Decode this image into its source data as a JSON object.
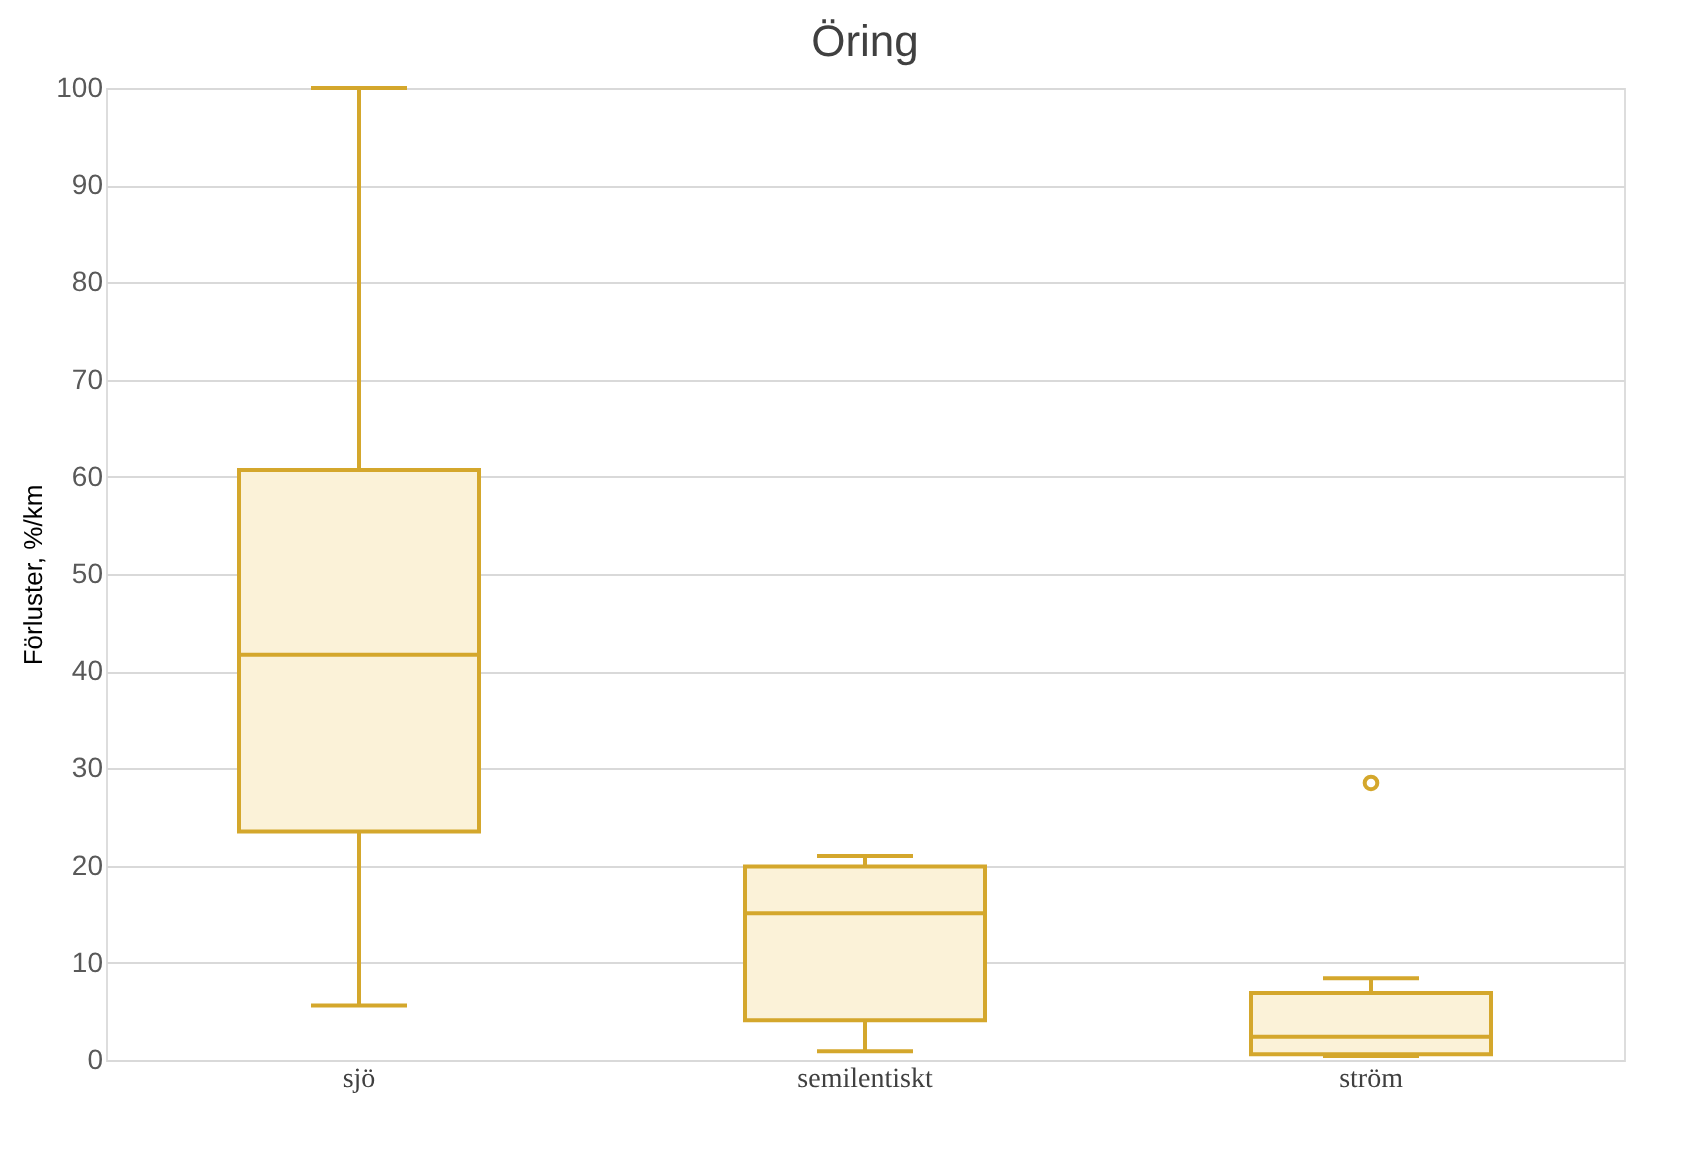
{
  "chart_data": {
    "type": "box",
    "title": "Öring",
    "ylabel": "Förluster, %/km",
    "categories": [
      "sjö",
      "semilentiskt",
      "ström"
    ],
    "color": "#d4a72c",
    "boxes": [
      {
        "low": 5.6,
        "q1": 23.5,
        "median": 41.7,
        "q3": 60.7,
        "high": 100
      },
      {
        "low": 0.9,
        "q1": 4.1,
        "median": 15.1,
        "q3": 19.9,
        "high": 21
      },
      {
        "low": 0.4,
        "q1": 0.6,
        "median": 2.4,
        "q3": 6.9,
        "high": 8.4,
        "outliers": [
          28.5
        ]
      }
    ],
    "ylim": [
      0,
      100
    ],
    "yticks": [
      0,
      10,
      20,
      30,
      40,
      50,
      60,
      70,
      80,
      90,
      100
    ],
    "grid": "y"
  }
}
